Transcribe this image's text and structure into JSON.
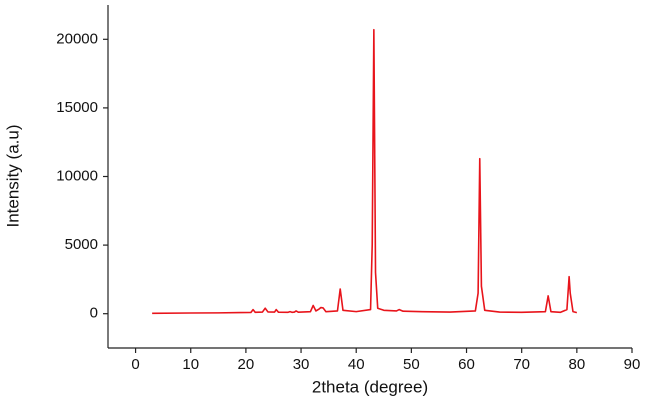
{
  "chart_data": {
    "type": "line",
    "x_label": "2theta (degree)",
    "y_label": "Intensity (a.u)",
    "xlim": [
      -5,
      90
    ],
    "ylim": [
      -2500,
      22500
    ],
    "xticks": [
      0,
      10,
      20,
      30,
      40,
      50,
      60,
      70,
      80,
      90
    ],
    "yticks": [
      0,
      5000,
      10000,
      15000,
      20000
    ],
    "grid": false,
    "series": [
      {
        "color": "#e8141b",
        "x": [
          3,
          10,
          15,
          19,
          20.9,
          21.3,
          21.7,
          23,
          23.5,
          24,
          25.2,
          25.5,
          25.9,
          27.6,
          28,
          28.4,
          28.8,
          29.1,
          29.5,
          31.7,
          32.2,
          32.7,
          33.3,
          33.6,
          34.0,
          34.5,
          36.6,
          37.1,
          37.6,
          40,
          42.6,
          42.9,
          43.2,
          43.5,
          43.9,
          45,
          47.3,
          47.8,
          48.5,
          52,
          57,
          61.6,
          62.1,
          62.4,
          62.7,
          63.3,
          66,
          70,
          74.3,
          74.8,
          75.3,
          77,
          78.2,
          78.6,
          78.8,
          79.3,
          80
        ],
        "values": [
          30,
          50,
          60,
          80,
          90,
          300,
          100,
          120,
          400,
          130,
          120,
          300,
          110,
          100,
          150,
          100,
          120,
          200,
          110,
          150,
          600,
          200,
          350,
          450,
          420,
          150,
          200,
          1800,
          250,
          150,
          300,
          5000,
          20700,
          3000,
          400,
          250,
          200,
          300,
          180,
          150,
          120,
          200,
          1500,
          11300,
          2000,
          250,
          120,
          100,
          150,
          1300,
          150,
          100,
          300,
          2700,
          1500,
          150,
          80
        ]
      }
    ]
  }
}
